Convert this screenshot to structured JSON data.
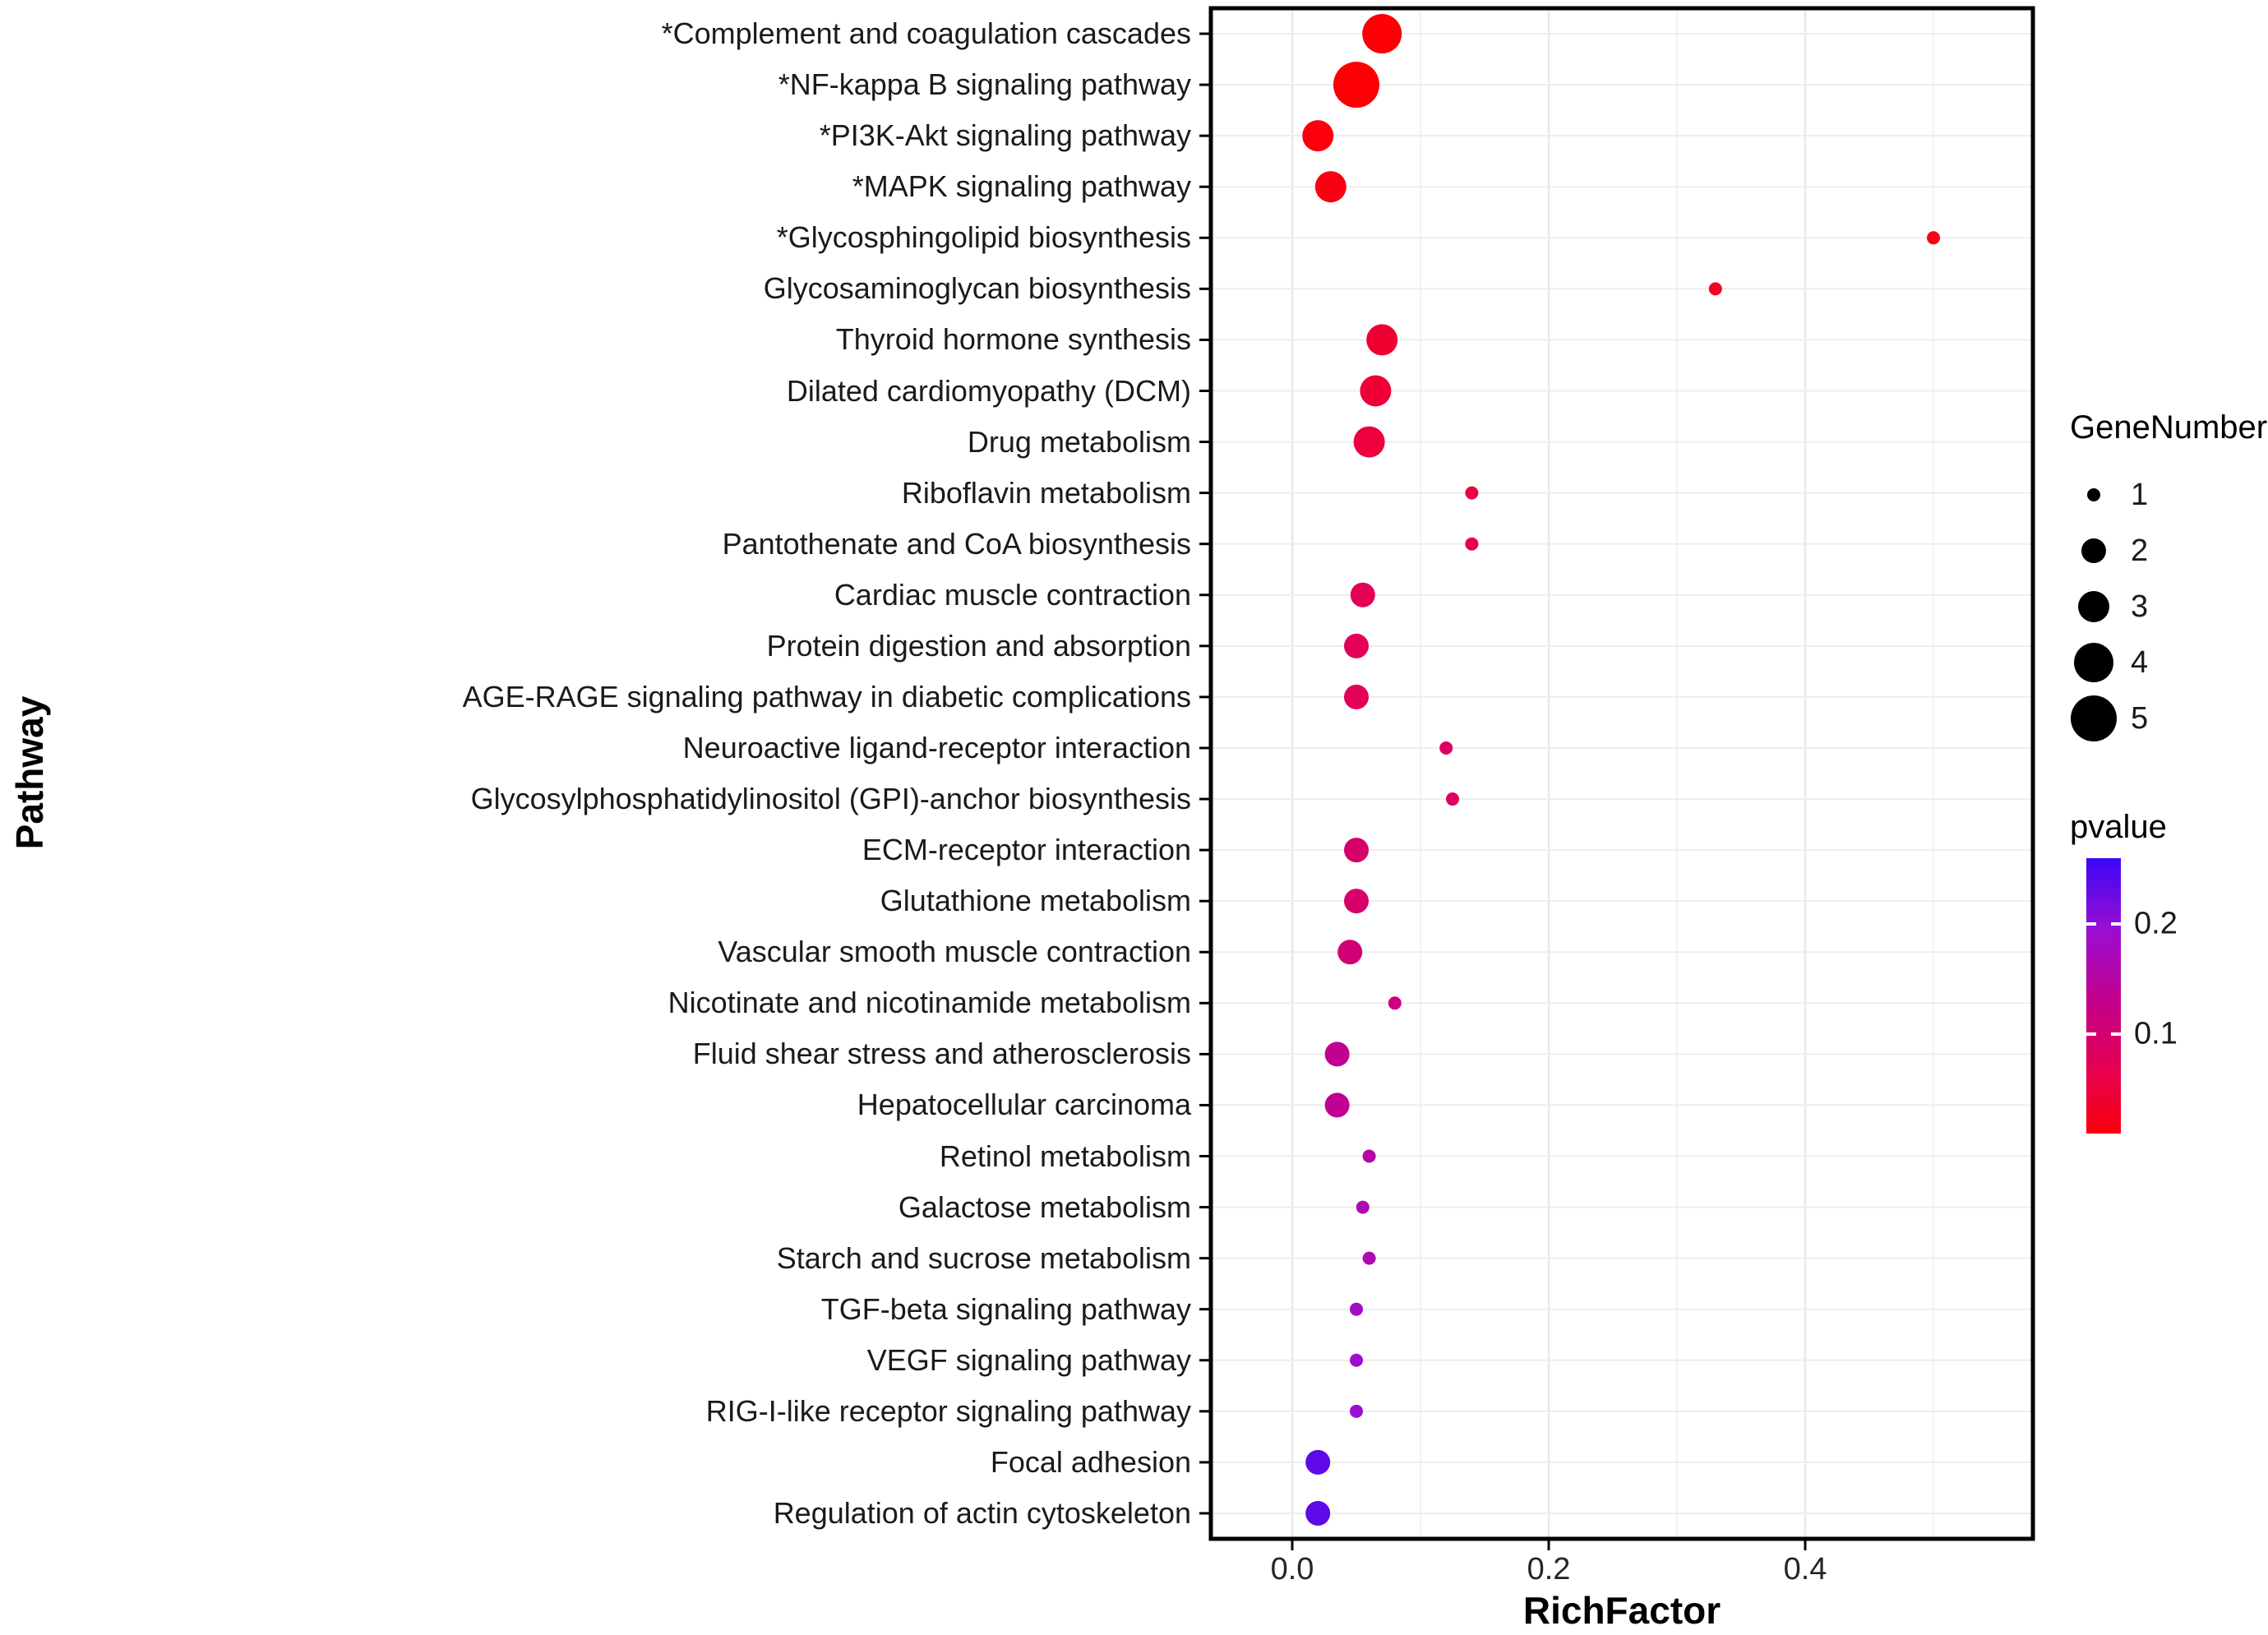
{
  "chart_data": {
    "type": "scatter",
    "title": "",
    "xlabel": "RichFactor",
    "ylabel": "Pathway",
    "xlim": [
      -0.065,
      0.58
    ],
    "grid": true,
    "x_ticks": [
      {
        "value": 0.0,
        "label": "0.0"
      },
      {
        "value": 0.2,
        "label": "0.2"
      },
      {
        "value": 0.4,
        "label": "0.4"
      }
    ],
    "x_minor_ticks": [
      0.1,
      0.3,
      0.5
    ],
    "points": [
      {
        "pathway": "*Complement and coagulation cascades",
        "rich_factor": 0.07,
        "gene_number": 4,
        "pvalue": 0.005
      },
      {
        "pathway": "*NF-kappa B signaling pathway",
        "rich_factor": 0.05,
        "gene_number": 5,
        "pvalue": 0.005
      },
      {
        "pathway": "*PI3K-Akt signaling pathway",
        "rich_factor": 0.02,
        "gene_number": 3,
        "pvalue": 0.01
      },
      {
        "pathway": "*MAPK signaling pathway",
        "rich_factor": 0.03,
        "gene_number": 3,
        "pvalue": 0.015
      },
      {
        "pathway": "*Glycosphingolipid biosynthesis",
        "rich_factor": 0.5,
        "gene_number": 1,
        "pvalue": 0.02
      },
      {
        "pathway": "Glycosaminoglycan biosynthesis",
        "rich_factor": 0.33,
        "gene_number": 1,
        "pvalue": 0.03
      },
      {
        "pathway": "Thyroid hormone synthesis",
        "rich_factor": 0.07,
        "gene_number": 3,
        "pvalue": 0.04
      },
      {
        "pathway": "Dilated cardiomyopathy (DCM)",
        "rich_factor": 0.065,
        "gene_number": 3,
        "pvalue": 0.045
      },
      {
        "pathway": "Drug metabolism",
        "rich_factor": 0.06,
        "gene_number": 3,
        "pvalue": 0.05
      },
      {
        "pathway": "Riboflavin metabolism",
        "rich_factor": 0.14,
        "gene_number": 1,
        "pvalue": 0.055
      },
      {
        "pathway": "Pantothenate and CoA biosynthesis",
        "rich_factor": 0.14,
        "gene_number": 1,
        "pvalue": 0.055
      },
      {
        "pathway": "Cardiac muscle contraction",
        "rich_factor": 0.055,
        "gene_number": 2,
        "pvalue": 0.07
      },
      {
        "pathway": "Protein digestion and absorption",
        "rich_factor": 0.05,
        "gene_number": 2,
        "pvalue": 0.075
      },
      {
        "pathway": "AGE-RAGE signaling pathway in diabetic complications",
        "rich_factor": 0.05,
        "gene_number": 2,
        "pvalue": 0.075
      },
      {
        "pathway": "Neuroactive ligand-receptor interaction",
        "rich_factor": 0.12,
        "gene_number": 1,
        "pvalue": 0.085
      },
      {
        "pathway": "Glycosylphosphatidylinositol (GPI)-anchor biosynthesis",
        "rich_factor": 0.125,
        "gene_number": 1,
        "pvalue": 0.085
      },
      {
        "pathway": "ECM-receptor interaction",
        "rich_factor": 0.05,
        "gene_number": 2,
        "pvalue": 0.095
      },
      {
        "pathway": "Glutathione metabolism",
        "rich_factor": 0.05,
        "gene_number": 2,
        "pvalue": 0.095
      },
      {
        "pathway": "Vascular smooth muscle contraction",
        "rich_factor": 0.045,
        "gene_number": 2,
        "pvalue": 0.105
      },
      {
        "pathway": "Nicotinate and nicotinamide metabolism",
        "rich_factor": 0.08,
        "gene_number": 1,
        "pvalue": 0.115
      },
      {
        "pathway": "Fluid shear stress and atherosclerosis",
        "rich_factor": 0.035,
        "gene_number": 2,
        "pvalue": 0.135
      },
      {
        "pathway": "Hepatocellular carcinoma",
        "rich_factor": 0.035,
        "gene_number": 2,
        "pvalue": 0.135
      },
      {
        "pathway": "Retinol metabolism",
        "rich_factor": 0.06,
        "gene_number": 1,
        "pvalue": 0.155
      },
      {
        "pathway": "Galactose metabolism",
        "rich_factor": 0.055,
        "gene_number": 1,
        "pvalue": 0.165
      },
      {
        "pathway": "Starch and sucrose metabolism",
        "rich_factor": 0.06,
        "gene_number": 1,
        "pvalue": 0.165
      },
      {
        "pathway": "TGF-beta signaling pathway",
        "rich_factor": 0.05,
        "gene_number": 1,
        "pvalue": 0.185
      },
      {
        "pathway": "VEGF signaling pathway",
        "rich_factor": 0.05,
        "gene_number": 1,
        "pvalue": 0.19
      },
      {
        "pathway": "RIG-I-like receptor signaling pathway",
        "rich_factor": 0.05,
        "gene_number": 1,
        "pvalue": 0.195
      },
      {
        "pathway": "Focal adhesion",
        "rich_factor": 0.02,
        "gene_number": 2,
        "pvalue": 0.235
      },
      {
        "pathway": "Regulation of actin cytoskeleton",
        "rich_factor": 0.02,
        "gene_number": 2,
        "pvalue": 0.235
      }
    ],
    "size_legend": {
      "title": "GeneNumber",
      "values": [
        {
          "value": 1,
          "label": "1"
        },
        {
          "value": 2,
          "label": "2"
        },
        {
          "value": 3,
          "label": "3"
        },
        {
          "value": 4,
          "label": "4"
        },
        {
          "value": 5,
          "label": "5"
        }
      ]
    },
    "color_legend": {
      "title": "pvalue",
      "ticks": [
        {
          "value": 0.2,
          "label": "0.2"
        },
        {
          "value": 0.1,
          "label": "0.1"
        }
      ],
      "colorbar": {
        "p_top": 0.26,
        "p_bottom": 0.01
      }
    },
    "color_scale": {
      "stops": [
        {
          "p": 0.0,
          "color": "#FF0000"
        },
        {
          "p": 0.065,
          "color": "#E7004F"
        },
        {
          "p": 0.13,
          "color": "#C4008C"
        },
        {
          "p": 0.195,
          "color": "#9B0ED2"
        },
        {
          "p": 0.26,
          "color": "#3A06F5"
        }
      ]
    },
    "style": {
      "panel_border_color": "#000000",
      "grid_major_color": "#e8e8e8",
      "grid_minor_color": "#f2f2f2",
      "grid_row_color": "#ededed",
      "dot_legend_color": "#000000"
    }
  }
}
